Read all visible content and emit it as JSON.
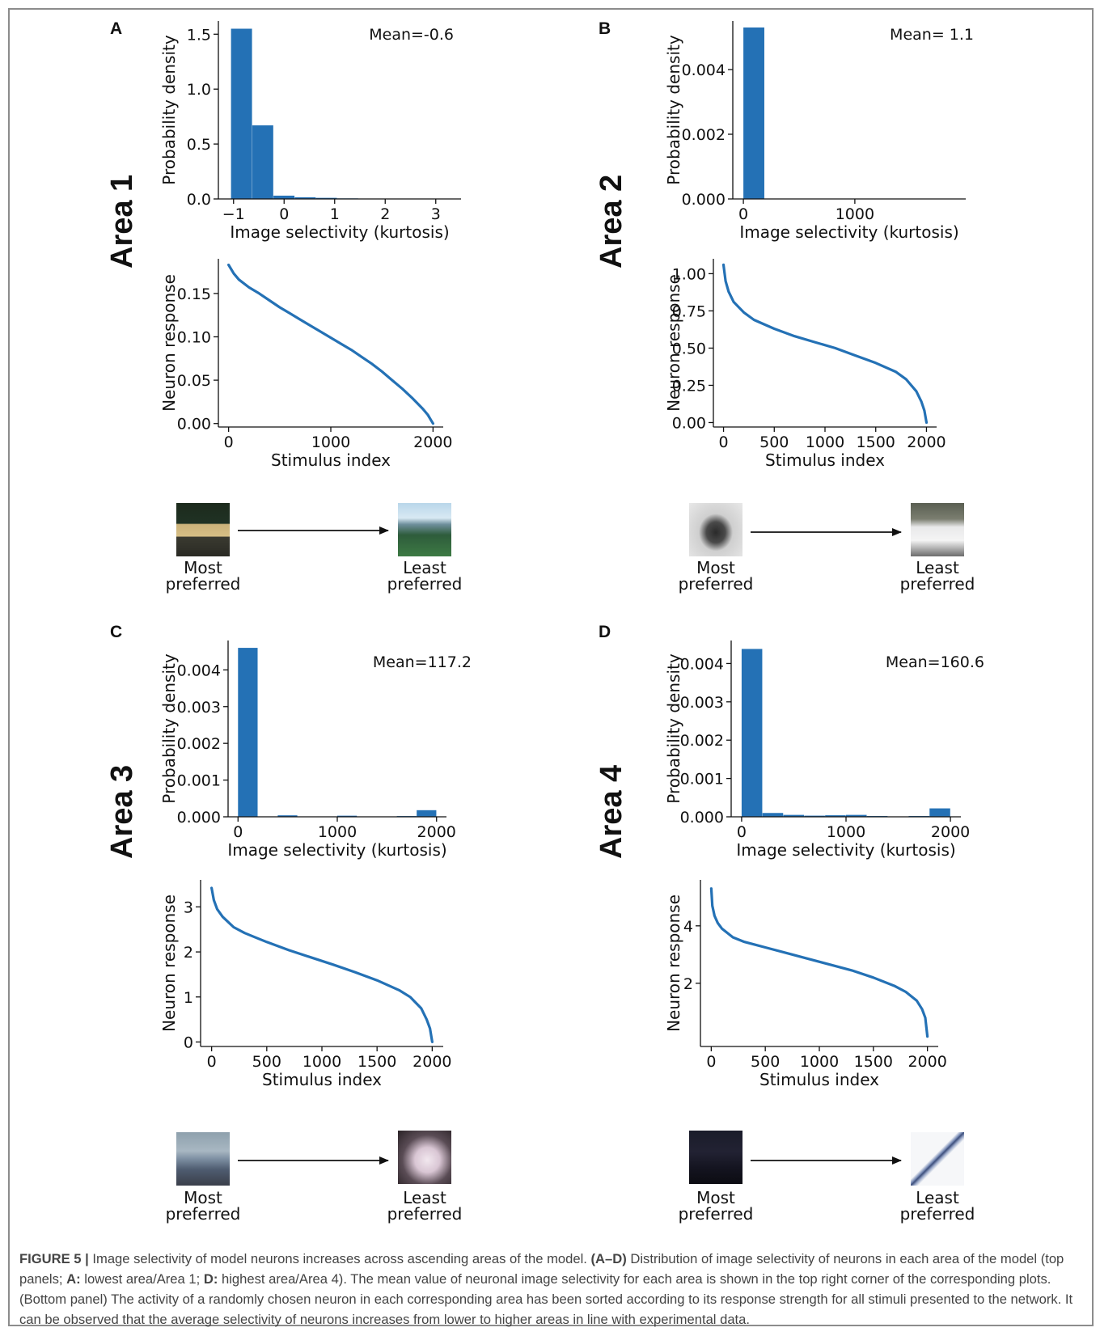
{
  "panels": [
    {
      "letter": "A",
      "area_label": "Area 1",
      "mean_label": "Mean=-0.6",
      "most_label": "Most\npreferred",
      "least_label": "Least\npreferred"
    },
    {
      "letter": "B",
      "area_label": "Area 2",
      "mean_label": "Mean= 1.1",
      "most_label": "Most\npreferred",
      "least_label": "Least\npreferred"
    },
    {
      "letter": "C",
      "area_label": "Area 3",
      "mean_label": "Mean=117.2",
      "most_label": "Most\npreferred",
      "least_label": "Least\npreferred"
    },
    {
      "letter": "D",
      "area_label": "Area 4",
      "mean_label": "Mean=160.6",
      "most_label": "Most\npreferred",
      "least_label": "Least\npreferred"
    }
  ],
  "chart_data": [
    {
      "panel": "A",
      "type": "bar",
      "kind": "histogram",
      "color": "#2471b5",
      "bins": [
        [
          -1.05,
          -0.63,
          1.55
        ],
        [
          -0.63,
          -0.21,
          0.67
        ],
        [
          -0.21,
          0.21,
          0.03
        ],
        [
          0.21,
          0.63,
          0.015
        ],
        [
          0.63,
          1.05,
          0.01
        ],
        [
          1.05,
          1.47,
          0.005
        ],
        [
          1.47,
          1.89,
          0.002
        ],
        [
          1.89,
          2.31,
          0.001
        ],
        [
          2.31,
          2.73,
          0.001
        ],
        [
          2.73,
          3.15,
          0.001
        ]
      ],
      "xlabel": "Image selectivity (kurtosis)",
      "ylabel": "Probability density",
      "xticks": [
        -1,
        0,
        1,
        2,
        3
      ],
      "xtick_labels": [
        "−1",
        "0",
        "1",
        "2",
        "3"
      ],
      "yticks": [
        0,
        0.5,
        1.0,
        1.5
      ],
      "ytick_labels": [
        "0.0",
        "0.5",
        "1.0",
        "1.5"
      ],
      "xlim": [
        -1.3,
        3.5
      ],
      "ylim": [
        0,
        1.62
      ]
    },
    {
      "panel": "A",
      "type": "line",
      "color": "#2471b5",
      "x": [
        0,
        50,
        100,
        200,
        300,
        400,
        500,
        600,
        700,
        800,
        900,
        1000,
        1100,
        1200,
        1300,
        1400,
        1500,
        1600,
        1700,
        1800,
        1900,
        1950,
        1980,
        2000
      ],
      "y": [
        0.183,
        0.173,
        0.166,
        0.157,
        0.15,
        0.142,
        0.134,
        0.127,
        0.12,
        0.113,
        0.106,
        0.099,
        0.092,
        0.085,
        0.077,
        0.069,
        0.06,
        0.05,
        0.04,
        0.029,
        0.017,
        0.01,
        0.004,
        0.0
      ],
      "xlabel": "Stimulus index",
      "ylabel": "Neuron response",
      "xticks": [
        0,
        1000,
        2000
      ],
      "xtick_labels": [
        "0",
        "1000",
        "2000"
      ],
      "yticks": [
        0,
        0.05,
        0.1,
        0.15
      ],
      "ytick_labels": [
        "0.00",
        "0.05",
        "0.10",
        "0.15"
      ],
      "xlim": [
        -100,
        2100
      ],
      "ylim": [
        -0.004,
        0.19
      ]
    },
    {
      "panel": "B",
      "type": "bar",
      "kind": "histogram",
      "color": "#2471b5",
      "bins": [
        [
          0,
          190,
          0.0053
        ],
        [
          190,
          380,
          0
        ],
        [
          380,
          570,
          0
        ],
        [
          570,
          760,
          0
        ],
        [
          760,
          950,
          0
        ],
        [
          950,
          1140,
          0
        ],
        [
          1140,
          1330,
          0
        ],
        [
          1330,
          1520,
          0
        ],
        [
          1520,
          1710,
          0
        ],
        [
          1710,
          1900,
          0
        ]
      ],
      "xlabel": "Image selectivity (kurtosis)",
      "ylabel": "Probability density",
      "xticks": [
        0,
        1000
      ],
      "xtick_labels": [
        "0",
        "1000"
      ],
      "yticks": [
        0,
        0.002,
        0.004
      ],
      "ytick_labels": [
        "0.000",
        "0.002",
        "0.004"
      ],
      "xlim": [
        -95,
        1995
      ],
      "ylim": [
        0,
        0.0055
      ]
    },
    {
      "panel": "B",
      "type": "line",
      "color": "#2471b5",
      "x": [
        0,
        20,
        50,
        100,
        200,
        300,
        400,
        500,
        700,
        900,
        1100,
        1300,
        1500,
        1700,
        1800,
        1900,
        1950,
        1980,
        2000
      ],
      "y": [
        1.06,
        0.95,
        0.88,
        0.81,
        0.74,
        0.69,
        0.66,
        0.63,
        0.58,
        0.54,
        0.5,
        0.45,
        0.4,
        0.34,
        0.29,
        0.21,
        0.14,
        0.08,
        0.0
      ],
      "xlabel": "Stimulus index",
      "ylabel": "Neuron response",
      "xticks": [
        0,
        500,
        1000,
        1500,
        2000
      ],
      "xtick_labels": [
        "0",
        "500",
        "1000",
        "1500",
        "2000"
      ],
      "yticks": [
        0,
        0.25,
        0.5,
        0.75,
        1.0
      ],
      "ytick_labels": [
        "0.00",
        "0.25",
        "0.50",
        "0.75",
        "1.00"
      ],
      "xlim": [
        -100,
        2100
      ],
      "ylim": [
        -0.03,
        1.1
      ]
    },
    {
      "panel": "C",
      "type": "bar",
      "kind": "histogram",
      "color": "#2471b5",
      "bins": [
        [
          0,
          200,
          0.0046
        ],
        [
          200,
          400,
          0
        ],
        [
          400,
          600,
          4e-05
        ],
        [
          600,
          800,
          0
        ],
        [
          800,
          1000,
          0
        ],
        [
          1000,
          1200,
          3e-05
        ],
        [
          1200,
          1400,
          0
        ],
        [
          1400,
          1600,
          0
        ],
        [
          1600,
          1800,
          2e-05
        ],
        [
          1800,
          2000,
          0.00018
        ]
      ],
      "xlabel": "Image selectivity (kurtosis)",
      "ylabel": "Probability density",
      "xticks": [
        0,
        1000,
        2000
      ],
      "xtick_labels": [
        "0",
        "1000",
        "2000"
      ],
      "yticks": [
        0,
        0.001,
        0.002,
        0.003,
        0.004
      ],
      "ytick_labels": [
        "0.000",
        "0.001",
        "0.002",
        "0.003",
        "0.004"
      ],
      "xlim": [
        -100,
        2100
      ],
      "ylim": [
        0,
        0.0048
      ]
    },
    {
      "panel": "C",
      "type": "line",
      "color": "#2471b5",
      "x": [
        0,
        20,
        50,
        100,
        200,
        300,
        400,
        500,
        700,
        900,
        1100,
        1300,
        1500,
        1700,
        1800,
        1900,
        1950,
        1980,
        2000
      ],
      "y": [
        3.42,
        3.15,
        2.95,
        2.78,
        2.55,
        2.42,
        2.32,
        2.22,
        2.04,
        1.88,
        1.72,
        1.55,
        1.37,
        1.15,
        1.0,
        0.75,
        0.5,
        0.3,
        0.0
      ],
      "xlabel": "Stimulus index",
      "ylabel": "Neuron response",
      "xticks": [
        0,
        500,
        1000,
        1500,
        2000
      ],
      "xtick_labels": [
        "0",
        "500",
        "1000",
        "1500",
        "2000"
      ],
      "yticks": [
        0,
        1,
        2,
        3
      ],
      "ytick_labels": [
        "0",
        "1",
        "2",
        "3"
      ],
      "xlim": [
        -100,
        2100
      ],
      "ylim": [
        -0.1,
        3.6
      ]
    },
    {
      "panel": "D",
      "type": "bar",
      "kind": "histogram",
      "color": "#2471b5",
      "bins": [
        [
          0,
          200,
          0.00438
        ],
        [
          200,
          400,
          0.0001
        ],
        [
          400,
          600,
          5e-05
        ],
        [
          600,
          800,
          3e-05
        ],
        [
          800,
          1000,
          4e-05
        ],
        [
          1000,
          1200,
          5e-05
        ],
        [
          1200,
          1400,
          2e-05
        ],
        [
          1400,
          1600,
          1e-05
        ],
        [
          1600,
          1800,
          2e-05
        ],
        [
          1800,
          2000,
          0.00022
        ]
      ],
      "xlabel": "Image selectivity (kurtosis)",
      "ylabel": "Probability density",
      "xticks": [
        0,
        1000,
        2000
      ],
      "xtick_labels": [
        "0",
        "1000",
        "2000"
      ],
      "yticks": [
        0,
        0.001,
        0.002,
        0.003,
        0.004
      ],
      "ytick_labels": [
        "0.000",
        "0.001",
        "0.002",
        "0.003",
        "0.004"
      ],
      "xlim": [
        -100,
        2100
      ],
      "ylim": [
        0,
        0.0046
      ]
    },
    {
      "panel": "D",
      "type": "line",
      "color": "#2471b5",
      "x": [
        0,
        10,
        30,
        60,
        100,
        200,
        300,
        400,
        500,
        700,
        900,
        1100,
        1300,
        1500,
        1700,
        1800,
        1900,
        1950,
        1980,
        2000
      ],
      "y": [
        5.3,
        4.7,
        4.35,
        4.1,
        3.9,
        3.6,
        3.45,
        3.35,
        3.25,
        3.05,
        2.85,
        2.65,
        2.45,
        2.2,
        1.9,
        1.7,
        1.4,
        1.1,
        0.8,
        0.15
      ],
      "xlabel": "Stimulus index",
      "ylabel": "Neuron response",
      "xticks": [
        0,
        500,
        1000,
        1500,
        2000
      ],
      "xtick_labels": [
        "0",
        "500",
        "1000",
        "1500",
        "2000"
      ],
      "yticks": [
        2,
        4
      ],
      "ytick_labels": [
        "2",
        "4"
      ],
      "xlim": [
        -100,
        2100
      ],
      "ylim": [
        -0.2,
        5.6
      ]
    }
  ],
  "caption": {
    "figure_label": "FIGURE 5 |",
    "part1": " Image selectivity of model neurons increases across ascending areas of the model. ",
    "ref_ad": "(A–D)",
    "part2": " Distribution of image selectivity of neurons in each area of the model (top panels; ",
    "ref_a": "A:",
    "part3": " lowest area/Area 1; ",
    "ref_d": "D:",
    "part4": " highest area/Area 4). The mean value of neuronal image selectivity for each area is shown in the top right corner of the corresponding plots. (Bottom panel) The activity of a randomly chosen neuron in each corresponding area has been sorted according to its response strength for all stimuli presented to the network. It can be observed that the average selectivity of neurons increases from lower to higher areas in line with experimental data."
  }
}
